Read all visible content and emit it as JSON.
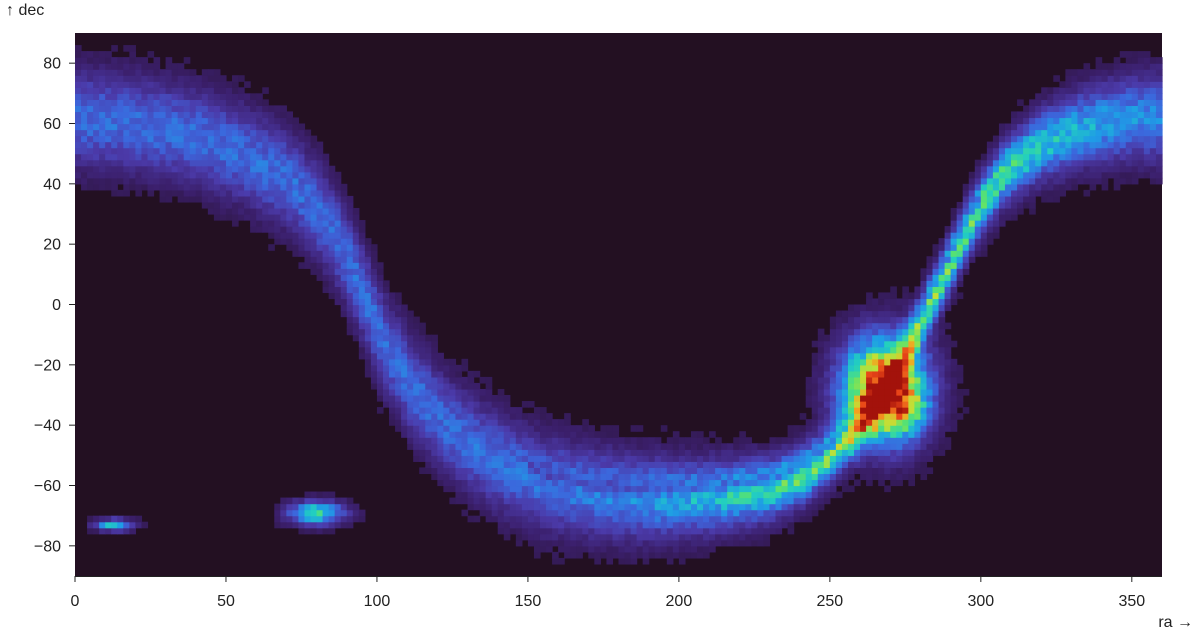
{
  "chart_data": {
    "type": "heatmap",
    "title": "",
    "xlabel": "ra →",
    "ylabel": "↑ dec",
    "xlim": [
      0,
      360
    ],
    "ylim": [
      -90,
      90
    ],
    "x_ticks": [
      0,
      50,
      100,
      150,
      200,
      250,
      300,
      350
    ],
    "y_ticks": [
      -80,
      -60,
      -40,
      -20,
      0,
      20,
      40,
      60,
      80
    ],
    "bin_size_deg": 2,
    "grid": false,
    "legend": "none",
    "colormap": [
      "#231022",
      "#3b1f6b",
      "#4b3aa9",
      "#3c66dc",
      "#1f9ce6",
      "#22cfc0",
      "#5ce36b",
      "#c2e036",
      "#f4a21f",
      "#e84418",
      "#a3120b"
    ],
    "background_color": "#231022",
    "density_features": [
      {
        "feature": "galactic-plane",
        "dec_at_ra": [
          [
            0,
            62
          ],
          [
            20,
            60
          ],
          [
            40,
            56
          ],
          [
            55,
            50
          ],
          [
            70,
            42
          ],
          [
            80,
            32
          ],
          [
            88,
            20
          ],
          [
            95,
            5
          ],
          [
            102,
            -12
          ],
          [
            112,
            -28
          ],
          [
            125,
            -42
          ],
          [
            140,
            -52
          ],
          [
            155,
            -59
          ],
          [
            170,
            -62
          ],
          [
            185,
            -64
          ],
          [
            200,
            -64
          ],
          [
            215,
            -63
          ],
          [
            230,
            -61
          ],
          [
            240,
            -57
          ],
          [
            250,
            -50
          ],
          [
            258,
            -42
          ],
          [
            265,
            -33
          ],
          [
            272,
            -22
          ],
          [
            278,
            -10
          ],
          [
            284,
            2
          ],
          [
            290,
            14
          ],
          [
            298,
            30
          ],
          [
            308,
            44
          ],
          [
            320,
            53
          ],
          [
            335,
            59
          ],
          [
            350,
            62
          ],
          [
            360,
            62
          ]
        ]
      },
      {
        "feature": "galactic-bulge",
        "ra": 268,
        "dec": -28,
        "peak": "red"
      },
      {
        "feature": "large-magellanic-cloud",
        "ra": 80,
        "dec": -69
      },
      {
        "feature": "small-magellanic-cloud",
        "ra": 13,
        "dec": -73
      }
    ]
  }
}
